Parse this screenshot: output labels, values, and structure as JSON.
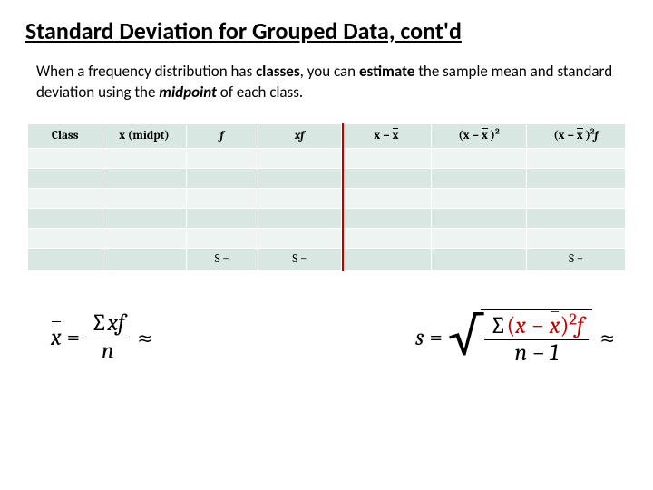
{
  "title": "Standard Deviation for Grouped Data, cont'd",
  "desc": {
    "pre": "When a frequency distribution has ",
    "classes": "classes",
    "mid1": ", you can ",
    "estimate": "estimate",
    "mid2": " the sample mean and standard deviation using the ",
    "midpoint": "midpoint",
    "post": " of each class."
  },
  "columns": {
    "c0": "Class",
    "c1": "x (midpt)",
    "c2": "f",
    "c3": "xf",
    "c4_pre": "x − ",
    "c5_pre": "(x − ",
    "c5_post": " )",
    "c6_pre": "(x − ",
    "c6_mid": " )",
    "c6_post": "f",
    "sq": "2"
  },
  "sum_label": "S =",
  "colors": {
    "header_bg": "#d9e7e3",
    "row_alt_bg": "#edf4f2",
    "row_reg_bg": "#d9e7e3",
    "border": "#ffffff",
    "redline": "#c00000",
    "formula_red": "#c00000"
  },
  "redline_left_pct": 52.5,
  "formula1": {
    "lhs": "x",
    "eq": "=",
    "num_sigma": "∑",
    "num_text": "xf",
    "den": "n",
    "approx": "≈"
  },
  "formula2": {
    "lhs": "s",
    "eq": "=",
    "num_sigma": "∑",
    "num_open": "(",
    "num_x": "x",
    "num_minus": " − ",
    "num_close": ")",
    "num_sq": "2",
    "num_f": "f",
    "den": "n − 1",
    "approx": "≈"
  }
}
